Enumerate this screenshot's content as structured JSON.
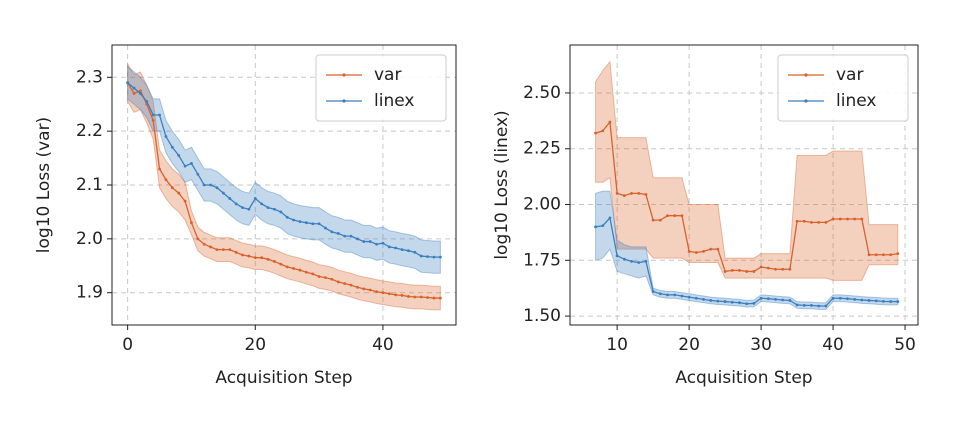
{
  "chart_data": [
    {
      "type": "line",
      "x_label": "Acquisition Step",
      "y_label": "log10 Loss (var)",
      "xlim": [
        -2.45,
        51.45
      ],
      "ylim": [
        1.84,
        2.36
      ],
      "xticks": [
        0,
        20,
        40
      ],
      "yticks": [
        1.9,
        {
          "value": 2,
          "label": "2.0"
        },
        2.1,
        2.2,
        2.3
      ],
      "grid": true,
      "legend": "upper right",
      "x": [
        0,
        1,
        2,
        3,
        4,
        5,
        6,
        7,
        8,
        9,
        10,
        11,
        12,
        13,
        14,
        15,
        16,
        17,
        18,
        19,
        20,
        21,
        22,
        23,
        24,
        25,
        26,
        27,
        28,
        29,
        30,
        31,
        32,
        33,
        34,
        35,
        36,
        37,
        38,
        39,
        40,
        41,
        42,
        43,
        44,
        45,
        46,
        47,
        48,
        49
      ],
      "series": [
        {
          "name": "var",
          "color": "#d9622b",
          "values": [
            2.29,
            2.27,
            2.275,
            2.25,
            2.22,
            2.13,
            2.11,
            2.095,
            2.085,
            2.07,
            2.03,
            2.0,
            1.99,
            1.985,
            1.98,
            1.98,
            1.98,
            1.975,
            1.97,
            1.968,
            1.965,
            1.965,
            1.962,
            1.958,
            1.953,
            1.948,
            1.945,
            1.942,
            1.938,
            1.935,
            1.93,
            1.928,
            1.925,
            1.92,
            1.917,
            1.914,
            1.91,
            1.907,
            1.905,
            1.902,
            1.9,
            1.898,
            1.896,
            1.895,
            1.893,
            1.892,
            1.892,
            1.891,
            1.89,
            1.89
          ],
          "lower": [
            2.255,
            2.235,
            2.24,
            2.215,
            2.185,
            2.095,
            2.075,
            2.06,
            2.05,
            2.035,
            2.008,
            1.978,
            1.968,
            1.963,
            1.958,
            1.958,
            1.958,
            1.953,
            1.948,
            1.946,
            1.943,
            1.943,
            1.94,
            1.936,
            1.931,
            1.926,
            1.923,
            1.92,
            1.916,
            1.913,
            1.908,
            1.906,
            1.903,
            1.898,
            1.895,
            1.892,
            1.888,
            1.885,
            1.883,
            1.88,
            1.878,
            1.876,
            1.874,
            1.873,
            1.871,
            1.87,
            1.87,
            1.869,
            1.868,
            1.868
          ],
          "upper": [
            2.325,
            2.305,
            2.31,
            2.285,
            2.255,
            2.165,
            2.145,
            2.13,
            2.12,
            2.105,
            2.052,
            2.022,
            2.012,
            2.007,
            2.002,
            2.002,
            2.002,
            1.997,
            1.992,
            1.99,
            1.987,
            1.987,
            1.984,
            1.98,
            1.975,
            1.97,
            1.967,
            1.964,
            1.96,
            1.957,
            1.952,
            1.95,
            1.947,
            1.942,
            1.939,
            1.936,
            1.932,
            1.929,
            1.927,
            1.924,
            1.922,
            1.92,
            1.918,
            1.917,
            1.915,
            1.914,
            1.914,
            1.913,
            1.912,
            1.912
          ]
        },
        {
          "name": "linex",
          "color": "#3a7fbf",
          "values": [
            2.29,
            2.28,
            2.27,
            2.255,
            2.23,
            2.23,
            2.19,
            2.17,
            2.155,
            2.135,
            2.14,
            2.12,
            2.1,
            2.1,
            2.095,
            2.085,
            2.075,
            2.065,
            2.058,
            2.055,
            2.075,
            2.065,
            2.058,
            2.055,
            2.05,
            2.04,
            2.035,
            2.032,
            2.03,
            2.028,
            2.028,
            2.02,
            2.013,
            2.01,
            2.005,
            2.005,
            2.0,
            1.995,
            1.995,
            1.99,
            1.992,
            1.985,
            1.983,
            1.98,
            1.978,
            1.975,
            1.968,
            1.967,
            1.966,
            1.966
          ],
          "lower": [
            2.26,
            2.25,
            2.24,
            2.225,
            2.2,
            2.2,
            2.16,
            2.14,
            2.125,
            2.105,
            2.11,
            2.09,
            2.07,
            2.07,
            2.065,
            2.055,
            2.045,
            2.035,
            2.028,
            2.025,
            2.045,
            2.035,
            2.028,
            2.025,
            2.02,
            2.01,
            2.005,
            2.002,
            2.0,
            1.998,
            1.998,
            1.99,
            1.983,
            1.98,
            1.975,
            1.975,
            1.97,
            1.965,
            1.965,
            1.96,
            1.962,
            1.955,
            1.953,
            1.95,
            1.948,
            1.945,
            1.938,
            1.937,
            1.936,
            1.936
          ],
          "upper": [
            2.32,
            2.31,
            2.3,
            2.285,
            2.26,
            2.26,
            2.22,
            2.2,
            2.185,
            2.165,
            2.17,
            2.15,
            2.13,
            2.13,
            2.125,
            2.115,
            2.105,
            2.095,
            2.088,
            2.085,
            2.105,
            2.095,
            2.088,
            2.085,
            2.08,
            2.07,
            2.065,
            2.062,
            2.06,
            2.058,
            2.058,
            2.05,
            2.043,
            2.04,
            2.035,
            2.035,
            2.03,
            2.025,
            2.025,
            2.02,
            2.022,
            2.015,
            2.013,
            2.01,
            2.008,
            2.005,
            1.998,
            1.997,
            1.996,
            1.996
          ]
        }
      ]
    },
    {
      "type": "line",
      "x_label": "Acquisition Step",
      "y_label": "log10 Loss (linex)",
      "xlim": [
        3.45,
        51.8
      ],
      "ylim": [
        1.46,
        2.715
      ],
      "xticks": [
        10,
        20,
        30,
        40,
        50
      ],
      "yticks": [
        {
          "value": 1.5,
          "label": "1.50"
        },
        1.75,
        {
          "value": 2,
          "label": "2.00"
        },
        2.25,
        {
          "value": 2.5,
          "label": "2.50"
        }
      ],
      "grid": true,
      "legend": "upper right",
      "x": [
        7,
        8,
        9,
        10,
        11,
        12,
        13,
        14,
        15,
        16,
        17,
        18,
        19,
        20,
        21,
        22,
        23,
        24,
        25,
        26,
        27,
        28,
        29,
        30,
        31,
        32,
        33,
        34,
        35,
        36,
        37,
        38,
        39,
        40,
        41,
        42,
        43,
        44,
        45,
        46,
        47,
        48,
        49
      ],
      "series": [
        {
          "name": "var",
          "color": "#d9622b",
          "values": [
            2.32,
            2.33,
            2.37,
            2.05,
            2.04,
            2.05,
            2.05,
            2.045,
            1.93,
            1.93,
            1.95,
            1.95,
            1.95,
            1.79,
            1.785,
            1.79,
            1.8,
            1.8,
            1.7,
            1.705,
            1.705,
            1.7,
            1.7,
            1.72,
            1.715,
            1.71,
            1.71,
            1.71,
            1.925,
            1.925,
            1.92,
            1.92,
            1.92,
            1.935,
            1.935,
            1.935,
            1.935,
            1.935,
            1.775,
            1.775,
            1.775,
            1.775,
            1.78
          ],
          "lower": [
            2.1,
            2.1,
            2.12,
            1.8,
            1.8,
            1.8,
            1.8,
            1.8,
            1.76,
            1.76,
            1.76,
            1.76,
            1.76,
            1.74,
            1.74,
            1.74,
            1.74,
            1.74,
            1.67,
            1.67,
            1.67,
            1.67,
            1.67,
            1.67,
            1.67,
            1.67,
            1.67,
            1.67,
            1.67,
            1.67,
            1.67,
            1.67,
            1.67,
            1.66,
            1.66,
            1.66,
            1.66,
            1.66,
            1.73,
            1.73,
            1.73,
            1.73,
            1.73
          ],
          "upper": [
            2.55,
            2.6,
            2.64,
            2.3,
            2.3,
            2.3,
            2.3,
            2.3,
            2.12,
            2.12,
            2.12,
            2.12,
            2.12,
            2.0,
            2.0,
            2.0,
            2.0,
            2.0,
            1.76,
            1.76,
            1.76,
            1.76,
            1.76,
            1.78,
            1.78,
            1.78,
            1.78,
            1.78,
            2.22,
            2.22,
            2.22,
            2.22,
            2.22,
            2.24,
            2.24,
            2.24,
            2.24,
            2.24,
            1.91,
            1.91,
            1.91,
            1.91,
            1.91
          ]
        },
        {
          "name": "linex",
          "color": "#3a7fbf",
          "values": [
            1.9,
            1.905,
            1.94,
            1.77,
            1.755,
            1.745,
            1.74,
            1.745,
            1.61,
            1.6,
            1.595,
            1.595,
            1.59,
            1.585,
            1.58,
            1.575,
            1.57,
            1.567,
            1.565,
            1.562,
            1.56,
            1.555,
            1.557,
            1.58,
            1.578,
            1.575,
            1.572,
            1.57,
            1.55,
            1.548,
            1.548,
            1.545,
            1.545,
            1.58,
            1.58,
            1.578,
            1.575,
            1.572,
            1.57,
            1.568,
            1.566,
            1.565,
            1.565
          ],
          "lower": [
            1.75,
            1.76,
            1.8,
            1.7,
            1.69,
            1.68,
            1.67,
            1.68,
            1.595,
            1.585,
            1.58,
            1.58,
            1.575,
            1.57,
            1.565,
            1.56,
            1.555,
            1.552,
            1.55,
            1.547,
            1.545,
            1.54,
            1.542,
            1.565,
            1.563,
            1.56,
            1.557,
            1.555,
            1.535,
            1.533,
            1.533,
            1.53,
            1.53,
            1.565,
            1.565,
            1.563,
            1.56,
            1.557,
            1.555,
            1.553,
            1.551,
            1.55,
            1.55
          ],
          "upper": [
            2.05,
            2.06,
            2.06,
            1.84,
            1.82,
            1.81,
            1.81,
            1.81,
            1.625,
            1.615,
            1.61,
            1.61,
            1.605,
            1.6,
            1.595,
            1.59,
            1.585,
            1.582,
            1.58,
            1.577,
            1.575,
            1.57,
            1.572,
            1.595,
            1.593,
            1.59,
            1.587,
            1.585,
            1.565,
            1.563,
            1.563,
            1.56,
            1.56,
            1.595,
            1.595,
            1.593,
            1.59,
            1.587,
            1.585,
            1.583,
            1.581,
            1.58,
            1.58
          ]
        }
      ]
    }
  ]
}
